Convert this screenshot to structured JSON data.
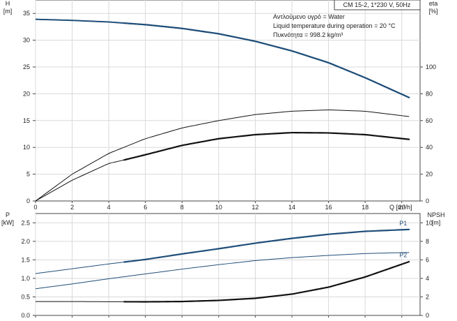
{
  "chart_data": [
    {
      "type": "line",
      "name": "pump-performance",
      "title": "CM 15-2, 1*230 V, 50Hz",
      "annotations": [
        "Αντλούμενο υγρό = Water",
        "Liquid temperature during operation = 20 °C",
        "Πυκνότητα = 998.2 kg/m³"
      ],
      "xlabel": "Q [m³/h]",
      "xlim": [
        0,
        21
      ],
      "xticks": [
        "0",
        "2",
        "4",
        "6",
        "8",
        "10",
        "12",
        "14",
        "16",
        "18",
        "20"
      ],
      "y_left": {
        "label": "H",
        "unit": "[m]",
        "lim": [
          0,
          37.5
        ],
        "ticks": [
          "0",
          "5",
          "10",
          "15",
          "20",
          "25",
          "30",
          "35"
        ]
      },
      "y_right": {
        "label": "eta",
        "unit": "[%]",
        "lim": [
          0,
          150
        ],
        "ticks": [
          "0",
          "20",
          "40",
          "60",
          "80",
          "100"
        ]
      },
      "grid": true,
      "series": [
        {
          "key": "h_curve",
          "axis": "left",
          "color": "#1f4e79",
          "width": 2.0,
          "x": [
            0,
            2,
            4,
            6,
            8,
            10,
            12,
            14,
            16,
            18,
            20.4
          ],
          "y": [
            33.9,
            33.7,
            33.4,
            32.9,
            32.2,
            31.2,
            29.8,
            28.0,
            25.8,
            23.0,
            19.3
          ],
          "bold_from": 4.8
        },
        {
          "key": "eta_pump",
          "axis": "right",
          "color": "#111111",
          "width": 1.0,
          "x": [
            0,
            2,
            4,
            6,
            8,
            10,
            12,
            14,
            16,
            18,
            20.4
          ],
          "y": [
            0,
            20,
            35.5,
            46.5,
            54.5,
            60,
            64.5,
            67,
            68,
            67,
            63
          ]
        },
        {
          "key": "eta_total",
          "axis": "right",
          "color": "#111111",
          "width": 1.0,
          "x": [
            0,
            2,
            4,
            4.8,
            6,
            8,
            10,
            12,
            14,
            16,
            18,
            20.4
          ],
          "y": [
            0,
            15.5,
            28,
            30.5,
            34.5,
            41.5,
            46.5,
            49.5,
            51,
            50.8,
            49.5,
            46
          ],
          "bold_from": 4.8
        }
      ]
    },
    {
      "type": "line",
      "name": "power-npsh",
      "xlabel": "",
      "xlim": [
        0,
        21
      ],
      "y_left": {
        "label": "P",
        "unit": "[kW]",
        "lim": [
          0,
          2.75
        ],
        "ticks": [
          "0.0",
          "0.5",
          "1.0",
          "1.5",
          "2.0",
          "2.5"
        ]
      },
      "y_right": {
        "label": "NPSH",
        "unit": "[m]",
        "lim": [
          0,
          11
        ],
        "ticks": [
          "0",
          "2",
          "4",
          "6",
          "8",
          "10"
        ]
      },
      "grid": true,
      "series": [
        {
          "key": "p1",
          "name": "P1",
          "axis": "left",
          "color": "#1f4e79",
          "width": 1.0,
          "x": [
            0,
            2,
            4,
            6,
            8,
            10,
            12,
            14,
            16,
            18,
            20.4
          ],
          "y": [
            1.13,
            1.26,
            1.39,
            1.51,
            1.66,
            1.8,
            1.95,
            2.08,
            2.19,
            2.27,
            2.32
          ],
          "bold_from": 4.8
        },
        {
          "key": "p2",
          "name": "P2",
          "axis": "left",
          "color": "#1f4e79",
          "width": 1.0,
          "x": [
            0,
            2,
            4,
            6,
            8,
            10,
            12,
            14,
            16,
            18,
            20.4
          ],
          "y": [
            0.72,
            0.85,
            0.99,
            1.12,
            1.25,
            1.37,
            1.48,
            1.56,
            1.62,
            1.67,
            1.7
          ]
        },
        {
          "key": "npsh",
          "axis": "right",
          "color": "#111111",
          "width": 1.0,
          "x": [
            0,
            2,
            4,
            6,
            8,
            10,
            12,
            14,
            16,
            18,
            20.4
          ],
          "y": [
            1.5,
            1.5,
            1.48,
            1.47,
            1.5,
            1.62,
            1.85,
            2.3,
            3.05,
            4.15,
            5.8
          ],
          "bold_from": 4.8
        }
      ]
    }
  ]
}
